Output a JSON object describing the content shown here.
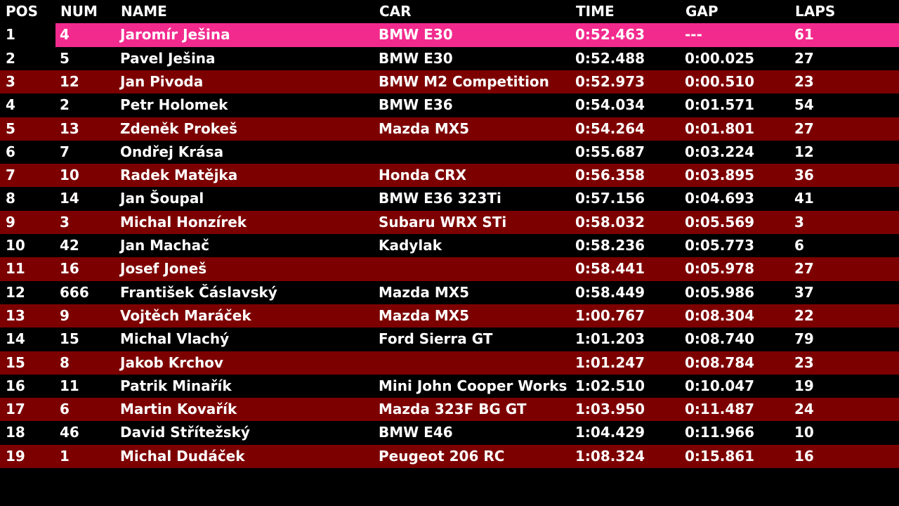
{
  "table": {
    "header": [
      "POS",
      "NUM",
      "NAME",
      "CAR",
      "TIME",
      "GAP",
      "LAPS"
    ],
    "rows": [
      [
        "1",
        "4",
        "Jaromír Ješina",
        "BMW E30",
        "0:52.463",
        "---",
        "61"
      ],
      [
        "2",
        "5",
        "Pavel Ješina",
        "BMW E30",
        "0:52.488",
        "0:00.025",
        "27"
      ],
      [
        "3",
        "12",
        "Jan Pivoda",
        "BMW M2 Competition",
        "0:52.973",
        "0:00.510",
        "23"
      ],
      [
        "4",
        "2",
        "Petr Holomek",
        "BMW E36",
        "0:54.034",
        "0:01.571",
        "54"
      ],
      [
        "5",
        "13",
        "Zdeněk Prokeš",
        "Mazda MX5",
        "0:54.264",
        "0:01.801",
        "27"
      ],
      [
        "6",
        "7",
        "Ondřej Krása",
        null,
        "0:55.687",
        "0:03.224",
        "12"
      ],
      [
        "7",
        "10",
        "Radek Matějka",
        "Honda CRX",
        "0:56.358",
        "0:03.895",
        "36"
      ],
      [
        "8",
        "14",
        "Jan Šoupal",
        "BMW E36 323Ti",
        "0:57.156",
        "0:04.693",
        "41"
      ],
      [
        "9",
        "3",
        "Michal Honzírek",
        "Subaru WRX STi",
        "0:58.032",
        "0:05.569",
        "3"
      ],
      [
        "10",
        "42",
        "Jan Machač",
        "Kadylak",
        "0:58.236",
        "0:05.773",
        "6"
      ],
      [
        "11",
        "16",
        "Josef Joneš",
        null,
        "0:58.441",
        "0:05.978",
        "27"
      ],
      [
        "12",
        "666",
        "František Čáslavský",
        "Mazda MX5",
        "0:58.449",
        "0:05.986",
        "37"
      ],
      [
        "13",
        "9",
        "Vojtěch Maráček",
        "Mazda MX5",
        "1:00.767",
        "0:08.304",
        "22"
      ],
      [
        "14",
        "15",
        "Michal Vlachý",
        "Ford Sierra GT",
        "1:01.203",
        "0:08.740",
        "79"
      ],
      [
        "15",
        "8",
        "Jakob Krchov",
        null,
        "1:01.247",
        "0:08.784",
        "23"
      ],
      [
        "16",
        "11",
        "Patrik Minařík",
        "Mini John Cooper Works",
        "1:02.510",
        "0:10.047",
        "19"
      ],
      [
        "17",
        "6",
        "Martin Kovařík",
        "Mazda 323F BG GT",
        "1:03.950",
        "0:11.487",
        "24"
      ],
      [
        "18",
        "46",
        "David Střítežský",
        "BMW E46",
        "1:04.429",
        "0:11.966",
        "10"
      ],
      [
        "19",
        "1",
        "Michal Dudáček",
        "Peugeot 206 RC",
        "1:08.324",
        "0:15.861",
        "16"
      ]
    ]
  }
}
